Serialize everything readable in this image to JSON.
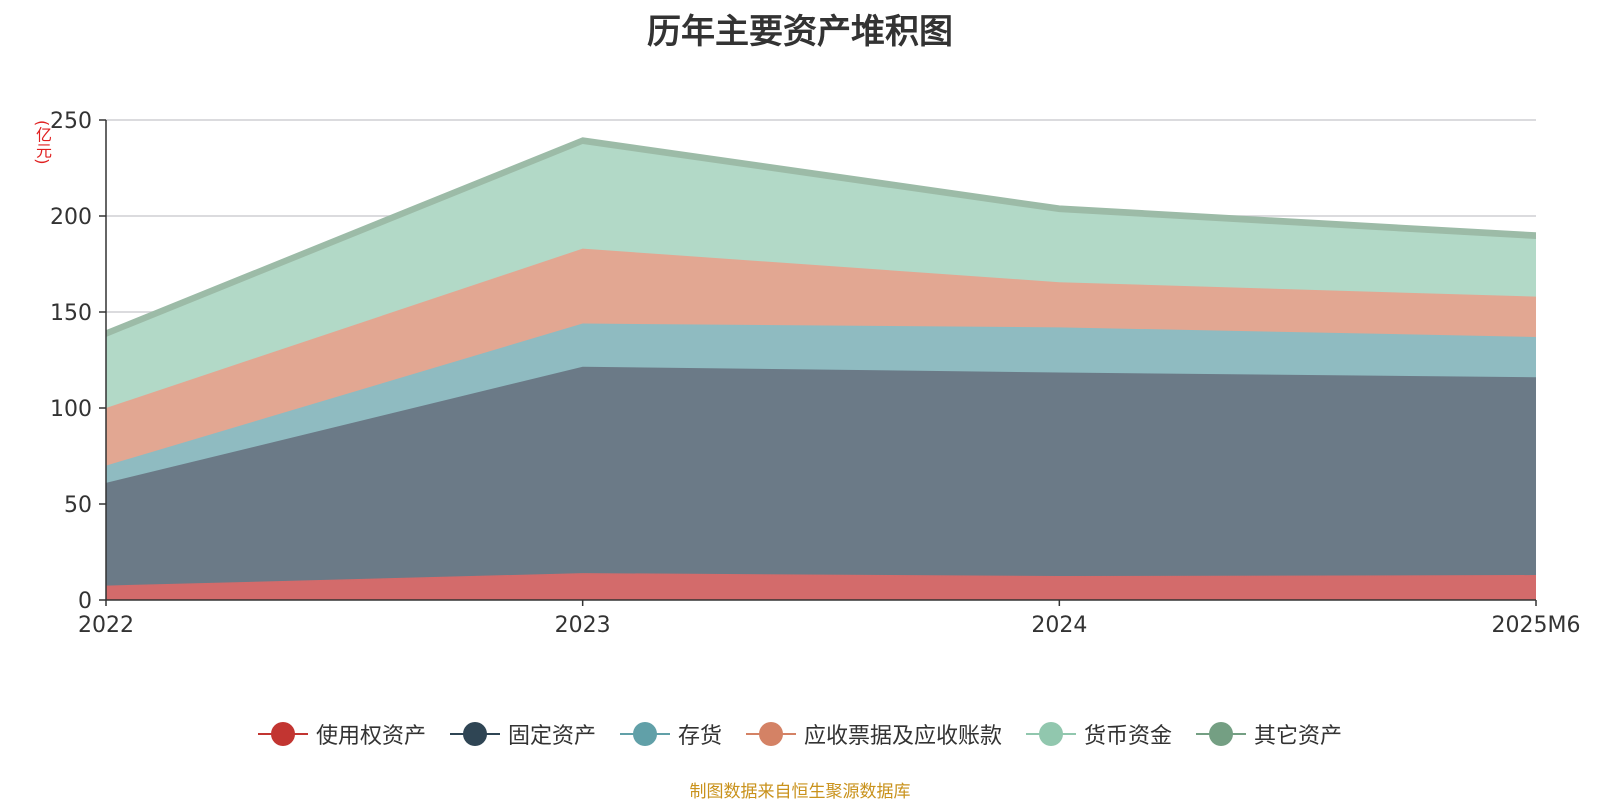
{
  "title": "历年主要资产堆积图",
  "unit_label": "(亿元)",
  "source": "制图数据来自恒生聚源数据库",
  "chart_data": {
    "type": "area",
    "stacked": true,
    "categories": [
      "2022",
      "2023",
      "2024",
      "2025M6"
    ],
    "ylim": [
      0,
      250
    ],
    "yticks": [
      0,
      50,
      100,
      150,
      200,
      250
    ],
    "grid": true,
    "legend_position": "bottom",
    "series": [
      {
        "name": "使用权资产",
        "values": [
          7.5,
          14,
          12.5,
          13
        ],
        "color": "#c23531",
        "fill": "#d36b6b"
      },
      {
        "name": "固定资产",
        "values": [
          53.5,
          107.5,
          106,
          103
        ],
        "color": "#2f4554",
        "fill": "#6b7a87"
      },
      {
        "name": "存货",
        "values": [
          9,
          22.5,
          23.5,
          21
        ],
        "color": "#61a0a8",
        "fill": "#8fbbc1"
      },
      {
        "name": "应收票据及应收账款",
        "values": [
          30,
          39,
          23.5,
          21
        ],
        "color": "#d48265",
        "fill": "#e2a792"
      },
      {
        "name": "货币资金",
        "values": [
          37,
          54.5,
          36.5,
          30
        ],
        "color": "#91c7ae",
        "fill": "#b2d9c7"
      },
      {
        "name": "其它资产",
        "values": [
          3,
          3,
          3,
          3
        ],
        "color": "#749f83",
        "fill": "#9cbba7"
      }
    ]
  }
}
